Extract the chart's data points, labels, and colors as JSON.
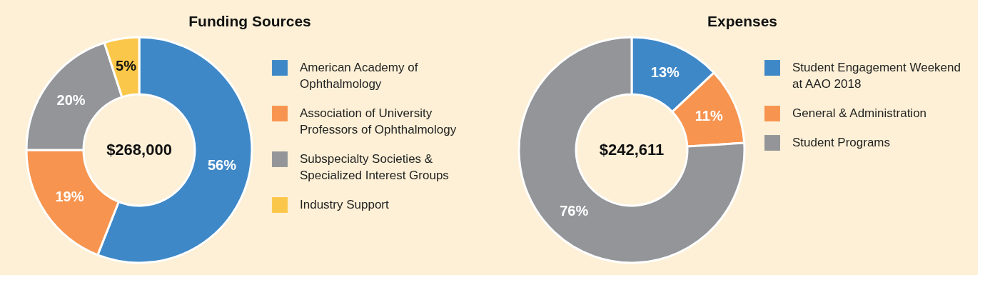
{
  "chart_data": [
    {
      "type": "donut",
      "title": "Funding Sources",
      "categories": [
        "American Academy of Ophthalmology",
        "Association of University Professors of Ophthalmology",
        "Subspecialty Societies & Specialized Interest Groups",
        "Industry Support"
      ],
      "values": [
        56,
        19,
        20,
        5
      ],
      "colors": [
        "#3f88c8",
        "#f7944f",
        "#939598",
        "#fbc74a"
      ],
      "value_labels": [
        "56%",
        "19%",
        "20%",
        "5%"
      ],
      "annotations": [
        "$268,000"
      ],
      "legend": "right"
    },
    {
      "type": "donut",
      "title": "Expenses",
      "categories": [
        "Student Engagement Weekend at AAO 2018",
        "General & Administration",
        "Student Programs"
      ],
      "values": [
        13,
        11,
        76
      ],
      "colors": [
        "#3f88c8",
        "#f7944f",
        "#939598"
      ],
      "value_labels": [
        "13%",
        "11%",
        "76%"
      ],
      "annotations": [
        "$242,611"
      ],
      "legend": "right"
    }
  ]
}
